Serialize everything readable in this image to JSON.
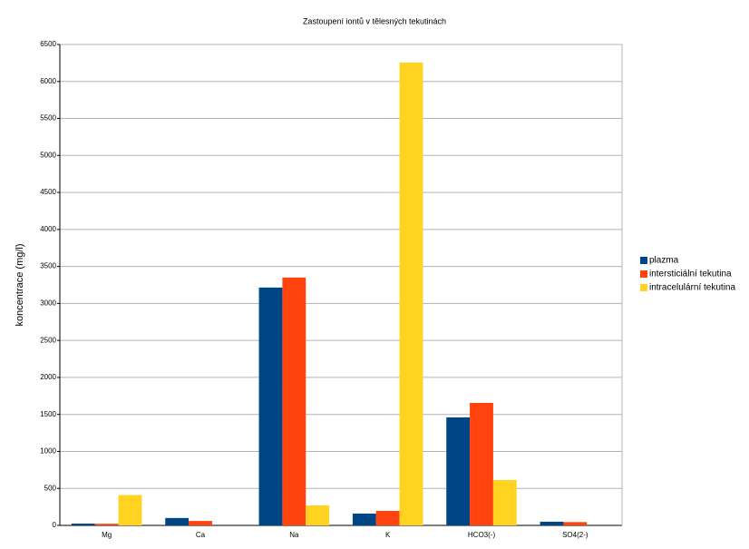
{
  "chart_data": {
    "type": "bar",
    "title": "Zastoupení iontů v tělesných tekutinách",
    "y_label": "koncentrace (mg/l)",
    "categories": [
      "Mg",
      "Ca",
      "Na",
      "K",
      "HCO3(-)",
      "SO4(2-)"
    ],
    "series": [
      {
        "name": "plazma",
        "color": "#004586",
        "values": [
          24,
          100,
          3215,
          160,
          1460,
          50
        ]
      },
      {
        "name": "intersticiální tekutina",
        "color": "#ff420e",
        "values": [
          22,
          60,
          3350,
          196,
          1656,
          45
        ]
      },
      {
        "name": "intracelulární tekutina",
        "color": "#ffd320",
        "values": [
          410,
          0,
          270,
          6255,
          613,
          0
        ]
      }
    ],
    "ylim": [
      0,
      6500
    ],
    "yticks": [
      0,
      500,
      1000,
      1500,
      2000,
      2500,
      3000,
      3500,
      4000,
      4500,
      5000,
      5500,
      6000,
      6500
    ],
    "grid": true,
    "legend": "right"
  }
}
